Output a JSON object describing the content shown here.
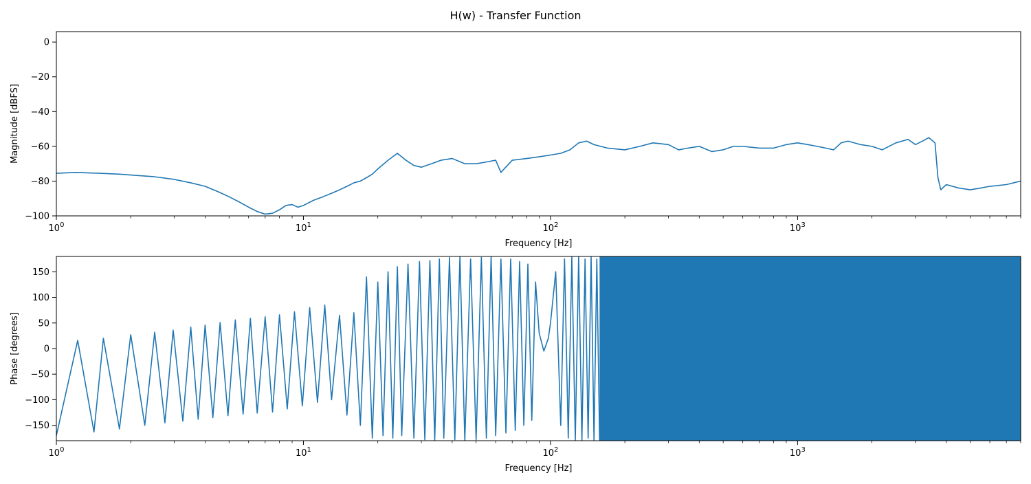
{
  "figure": {
    "title": "H(w) - Transfer Function",
    "line_color": "#1f77b4"
  },
  "chart_data": [
    {
      "type": "line",
      "title": "",
      "xlabel": "Frequency [Hz]",
      "ylabel": "Magnitude [dBFS]",
      "xscale": "log",
      "xlim": [
        1,
        8000
      ],
      "ylim": [
        -100,
        6
      ],
      "x_ticks": [
        1,
        10,
        100,
        1000
      ],
      "x_tick_labels": [
        "10^0",
        "10^1",
        "10^2",
        "10^3"
      ],
      "y_ticks": [
        0,
        -20,
        -40,
        -60,
        -80,
        -100
      ],
      "y_tick_labels": [
        "0",
        "−20",
        "−40",
        "−60",
        "−80",
        "−100"
      ],
      "grid": false,
      "series": [
        {
          "x": [
            1,
            1.2,
            1.5,
            1.8,
            2,
            2.5,
            3,
            3.5,
            4,
            4.5,
            5,
            5.5,
            6,
            6.5,
            7,
            7.5,
            8,
            8.5,
            9,
            9.5,
            10,
            11,
            12,
            13,
            14,
            15,
            16,
            17,
            18,
            19,
            20,
            22,
            24,
            26,
            28,
            30,
            33,
            36,
            40,
            45,
            50,
            55,
            60,
            63,
            70,
            80,
            90,
            100,
            110,
            120,
            130,
            140,
            150,
            170,
            200,
            230,
            260,
            300,
            330,
            360,
            400,
            450,
            500,
            550,
            600,
            700,
            800,
            900,
            1000,
            1100,
            1200,
            1300,
            1400,
            1500,
            1600,
            1800,
            2000,
            2200,
            2500,
            2800,
            3000,
            3200,
            3400,
            3600,
            3700,
            3800,
            4000,
            4500,
            5000,
            5500,
            6000,
            7000,
            8000
          ],
          "y": [
            -75.5,
            -75,
            -75.5,
            -76,
            -76.5,
            -77.5,
            -79,
            -81,
            -83,
            -86,
            -89,
            -92,
            -95,
            -97.5,
            -99,
            -98.5,
            -96.5,
            -94,
            -93.5,
            -95,
            -94,
            -91,
            -89,
            -87,
            -85,
            -83,
            -81,
            -80,
            -78,
            -76,
            -73,
            -68,
            -64,
            -68,
            -71,
            -72,
            -70,
            -68,
            -67,
            -70,
            -70,
            -69,
            -68,
            -75,
            -68,
            -67,
            -66,
            -65,
            -64,
            -62,
            -58,
            -57,
            -59,
            -61,
            -62,
            -60,
            -58,
            -59,
            -62,
            -61,
            -60,
            -63,
            -62,
            -60,
            -60,
            -61,
            -61,
            -59,
            -58,
            -59,
            -60,
            -61,
            -62,
            -58,
            -57,
            -59,
            -60,
            -62,
            -58,
            -56,
            -59,
            -57,
            -55,
            -58,
            -78,
            -85,
            -82,
            -84,
            -85,
            -84,
            -83,
            -82,
            -80
          ]
        }
      ]
    },
    {
      "type": "line",
      "title": "",
      "xlabel": "Frequency [Hz]",
      "ylabel": "Phase [degrees]",
      "xscale": "log",
      "xlim": [
        1,
        8000
      ],
      "ylim": [
        -180,
        180
      ],
      "x_ticks": [
        1,
        10,
        100,
        1000
      ],
      "x_tick_labels": [
        "10^0",
        "10^1",
        "10^2",
        "10^3"
      ],
      "y_ticks": [
        150,
        100,
        50,
        0,
        -50,
        -100,
        -150
      ],
      "y_tick_labels": [
        "150",
        "100",
        "50",
        "0",
        "−50",
        "−100",
        "−150"
      ],
      "grid": false,
      "series": [
        {
          "x": [
            1,
            1.22,
            1.42,
            1.55,
            1.8,
            2.0,
            2.28,
            2.5,
            2.75,
            2.97,
            3.25,
            3.5,
            3.75,
            4.0,
            4.3,
            4.6,
            4.95,
            5.3,
            5.7,
            6.1,
            6.5,
            7.0,
            7.5,
            8.0,
            8.6,
            9.2,
            9.9,
            10.6,
            11.4,
            12.2,
            13.0,
            14.0,
            15.0,
            16.0,
            17.0,
            18.0,
            19.0,
            20.0,
            21.0,
            22.0,
            23.0,
            24.0,
            25.0,
            26.5,
            28.0,
            29.5,
            31.0,
            32.5,
            34.0,
            35.5,
            37.0,
            39.0,
            41.0,
            43.0,
            45.0,
            47.5,
            50.0,
            52.5,
            55.0,
            57.5,
            60.0,
            63.0,
            66.0,
            69.0,
            72.0,
            75.0,
            78.0,
            81.0,
            84.0,
            87.0,
            90.0,
            94.0,
            98.0,
            100.0,
            105.0,
            110.0,
            114.0,
            118.0,
            122.0,
            126.0,
            130.0,
            134.0,
            138.0,
            142.0,
            146.0,
            150.0,
            154.0,
            158.0
          ],
          "y": [
            -170,
            16,
            -163,
            20,
            -157,
            27,
            -150,
            32,
            -145,
            36,
            -142,
            42,
            -138,
            46,
            -135,
            51,
            -131,
            56,
            -128,
            59,
            -126,
            62,
            -124,
            66,
            -118,
            72,
            -112,
            80,
            -105,
            85,
            -100,
            65,
            -130,
            70,
            -150,
            140,
            -175,
            130,
            -170,
            150,
            -175,
            160,
            -170,
            165,
            -175,
            170,
            -178,
            172,
            -180,
            175,
            -175,
            178,
            -178,
            180,
            -180,
            175,
            -178,
            178,
            -175,
            180,
            -170,
            175,
            -165,
            175,
            -160,
            170,
            -150,
            165,
            -140,
            130,
            30,
            -5,
            20,
            50,
            150,
            -150,
            175,
            -175,
            180,
            -180,
            180,
            -180,
            175,
            -175,
            180,
            -180,
            175,
            -180
          ]
        }
      ],
      "dense_fill": {
        "x_range": [
          158,
          8000
        ],
        "y_range": [
          -180,
          180
        ]
      }
    }
  ]
}
